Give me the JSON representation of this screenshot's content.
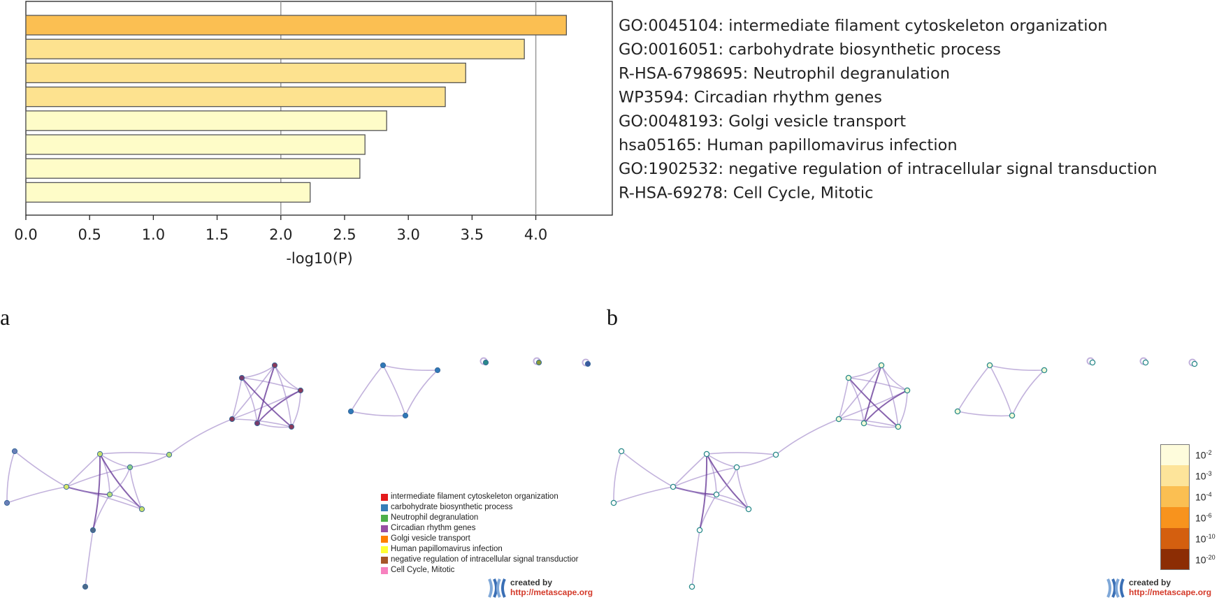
{
  "panels": {
    "a": "a",
    "b": "b"
  },
  "chart_data": {
    "type": "bar",
    "orientation": "horizontal",
    "xlabel": "-log10(P)",
    "xlim": [
      0,
      4.6
    ],
    "xticks": [
      "0.0",
      "0.5",
      "1.0",
      "1.5",
      "2.0",
      "2.5",
      "3.0",
      "3.5",
      "4.0"
    ],
    "gridlines_at": [
      2.0,
      4.0
    ],
    "categories": [
      "GO:0045104: intermediate filament cytoskeleton organization",
      "GO:0016051: carbohydrate biosynthetic process",
      "R-HSA-6798695: Neutrophil degranulation",
      "WP3594: Circadian rhythm genes",
      "GO:0048193: Golgi vesicle transport",
      "hsa05165: Human papillomavirus infection",
      "GO:1902532: negative regulation of intracellular signal transduction",
      "R-HSA-69278: Cell Cycle, Mitotic"
    ],
    "values": [
      4.24,
      3.91,
      3.45,
      3.29,
      2.83,
      2.66,
      2.62,
      2.23
    ],
    "bar_colors": [
      "#fbbf52",
      "#fde28f",
      "#fde28f",
      "#fde28f",
      "#fefcc8",
      "#fefcc8",
      "#fefcc8",
      "#fefcc8"
    ]
  },
  "legend": [
    {
      "label": "intermediate filament cytoskeleton organization",
      "color": "#e41a1c"
    },
    {
      "label": "carbohydrate biosynthetic process",
      "color": "#377eb8"
    },
    {
      "label": "Neutrophil degranulation",
      "color": "#4daf4a"
    },
    {
      "label": "Circadian rhythm genes",
      "color": "#984ea3"
    },
    {
      "label": "Golgi vesicle transport",
      "color": "#ff7f00"
    },
    {
      "label": "Human papillomavirus infection",
      "color": "#ffff33"
    },
    {
      "label": "negative regulation of intracellular signal transductior",
      "color": "#a65628"
    },
    {
      "label": "Cell Cycle, Mitotic",
      "color": "#f781bf"
    }
  ],
  "pvalue_scale": [
    {
      "base": "10",
      "exp": "-2",
      "color": "#fefcdc"
    },
    {
      "base": "10",
      "exp": "-3",
      "color": "#fde49a"
    },
    {
      "base": "10",
      "exp": "-4",
      "color": "#fbbf52"
    },
    {
      "base": "10",
      "exp": "-6",
      "color": "#f8931d"
    },
    {
      "base": "10",
      "exp": "-10",
      "color": "#d45f0f"
    },
    {
      "base": "10",
      "exp": "-20",
      "color": "#8c2d04"
    }
  ],
  "credit": {
    "by": "created by",
    "url": "http://metascape.org"
  },
  "colors": {
    "edge": "#9a7fc4",
    "edge_dark": "#6a3d9a",
    "node_stroke_b": "#2a8a8a"
  }
}
